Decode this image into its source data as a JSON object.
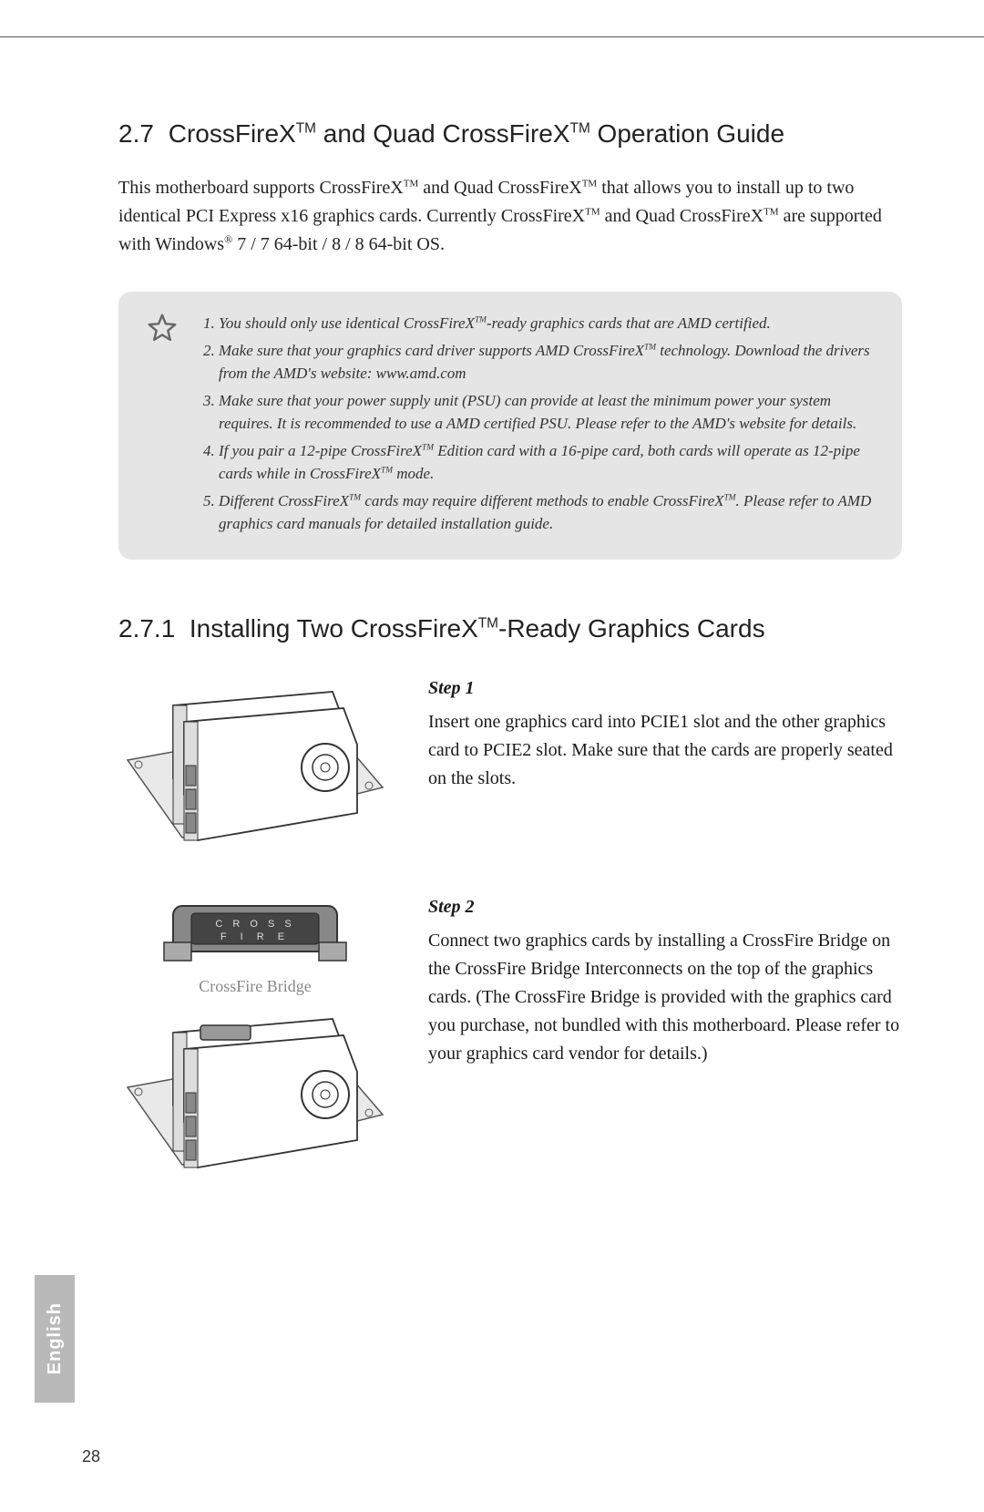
{
  "page_number": "28",
  "side_tab": "English",
  "section": {
    "number": "2.7",
    "title_pre": "CrossFireX",
    "title_mid": " and Quad CrossFireX",
    "title_post": " Operation Guide"
  },
  "intro_html": "This motherboard supports CrossFireX<sup class='tm'>TM</sup> and Quad CrossFireX<sup class='tm'>TM</sup> that allows you to install up to two identical PCI Express x16 graphics cards. Currently CrossFireX<sup class='tm'>TM</sup> and Quad CrossFireX<sup class='tm'>TM</sup> are supported with Windows<sup class='reg'>®</sup> 7 / 7 64-bit / 8 / 8 64-bit OS.",
  "notes": [
    "You should only use identical CrossFireX<sup class='tm'>TM</sup>-ready graphics cards that are AMD certified.",
    "Make sure that your graphics card driver supports AMD CrossFireX<sup class='tm'>TM</sup> technology. Download the drivers from the AMD's website: www.amd.com",
    "Make sure that your power supply unit (PSU) can provide at least the minimum power your system requires. It is recommended to use a AMD certified PSU. Please refer to the AMD's website for details.",
    "If you pair a 12-pipe CrossFireX<sup class='tm'>TM</sup> Edition card with a 16-pipe card, both cards will operate as 12-pipe cards while in CrossFireX<sup class='tm'>TM</sup> mode.",
    "Different CrossFireX<sup class='tm'>TM</sup> cards may require different methods to enable CrossFireX<sup class='tm'>TM</sup>. Please refer to AMD graphics card manuals for detailed installation guide."
  ],
  "subsection": {
    "number": "2.7.1",
    "title_pre": "Installing Two CrossFireX",
    "title_post": "-Ready Graphics Cards"
  },
  "step1": {
    "heading": "Step 1",
    "body": "Insert one graphics card into PCIE1 slot and the other graphics card to PCIE2 slot. Make sure that the cards are properly seated on the slots."
  },
  "step2": {
    "heading": "Step 2",
    "body": "Connect two graphics cards by installing a CrossFire Bridge on the CrossFire Bridge Interconnects on the top of the graphics cards. (The CrossFire Bridge is provided with the graphics card you purchase, not bundled with this motherboard. Please refer to your graphics card vendor for details.)",
    "bridge_label": "CrossFire Bridge",
    "bridge_text_top": "C R O S S",
    "bridge_text_bottom": "F I R E"
  },
  "colors": {
    "note_bg": "#e5e5e5",
    "side_tab_bg": "#b9b9b9",
    "side_tab_text": "#ffffff",
    "body_text": "#1a1a1a",
    "bridge_label": "#888888"
  }
}
